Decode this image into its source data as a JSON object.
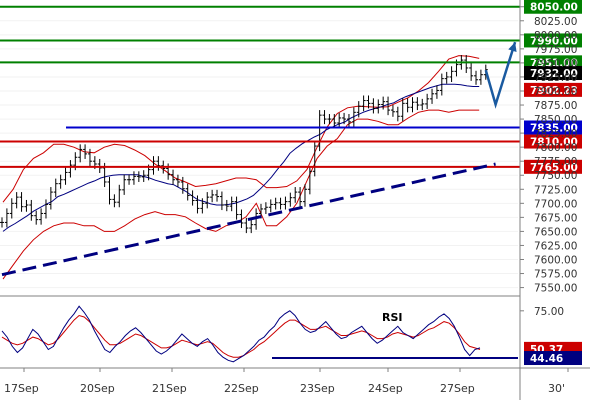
{
  "chart_data": {
    "type": "line",
    "price_panel": {
      "ylim": [
        7535,
        8062
      ],
      "yticks": [
        8050,
        8025,
        8000,
        7975,
        7950,
        7925,
        7900,
        7875,
        7850,
        7825,
        7800,
        7775,
        7750,
        7725,
        7700,
        7675,
        7650,
        7625,
        7600,
        7575,
        7550
      ],
      "ytick_labels": [
        "8050.00",
        "8025.00",
        "8000.00",
        "7975.00",
        "7950.00",
        "7925.00",
        "7900.00",
        "7875.00",
        "7850.00",
        "7825.00",
        "7800.00",
        "7775.00",
        "7750.00",
        "7725.00",
        "7700.00",
        "7675.00",
        "7650.00",
        "7625.00",
        "7600.00",
        "7575.00",
        "7550.00"
      ],
      "levels": [
        {
          "label": "8050.00",
          "value": 8050,
          "kind": "resistance",
          "color": "#008000"
        },
        {
          "label": "7990.00",
          "value": 7990,
          "kind": "resistance",
          "color": "#008000"
        },
        {
          "label": "7951.00",
          "value": 7951,
          "kind": "resistance",
          "color": "#008000"
        },
        {
          "label": "7835.00",
          "value": 7835,
          "kind": "trend",
          "color": "#0000cc"
        },
        {
          "label": "7810.00",
          "value": 7810,
          "kind": "support",
          "color": "#cc0000"
        },
        {
          "label": "7765.00",
          "value": 7765,
          "kind": "support",
          "color": "#cc0000"
        }
      ],
      "price_markers": [
        {
          "label": "7932.00",
          "value": 7932,
          "color": "#000000"
        },
        {
          "label": "7902.23",
          "value": 7902,
          "color": "#cc0000"
        }
      ],
      "trendline": {
        "from": [
          0,
          7573
        ],
        "to": [
          101,
          7770
        ],
        "style": "dashed",
        "color": "#000080"
      },
      "projection_arrow": [
        [
          99,
          7937
        ],
        [
          101,
          7876
        ],
        [
          105,
          7987
        ]
      ],
      "price_series": [
        7666,
        7682,
        7700,
        7711,
        7694,
        7697,
        7678,
        7671,
        7682,
        7698,
        7720,
        7735,
        7742,
        7755,
        7768,
        7782,
        7796,
        7788,
        7775,
        7770,
        7763,
        7738,
        7707,
        7702,
        7724,
        7742,
        7742,
        7748,
        7747,
        7750,
        7760,
        7775,
        7767,
        7762,
        7751,
        7742,
        7738,
        7726,
        7714,
        7705,
        7691,
        7700,
        7711,
        7715,
        7712,
        7697,
        7695,
        7703,
        7680,
        7665,
        7656,
        7662,
        7682,
        7690,
        7693,
        7698,
        7701,
        7698,
        7703,
        7710,
        7720,
        7703,
        7725,
        7757,
        7802,
        7857,
        7850,
        7850,
        7843,
        7852,
        7850,
        7845,
        7862,
        7873,
        7883,
        7878,
        7869,
        7876,
        7881,
        7866,
        7863,
        7855,
        7878,
        7871,
        7880,
        7875,
        7877,
        7886,
        7895,
        7901,
        7922,
        7925,
        7935,
        7947,
        7955,
        7941,
        7927,
        7920,
        7929,
        7938
      ],
      "moving_average": [
        7650,
        7658,
        7664,
        7671,
        7678,
        7686,
        7692,
        7698,
        7703,
        7712,
        7716,
        7721,
        7726,
        7731,
        7736,
        7740,
        7745,
        7748,
        7750,
        7751,
        7751,
        7751,
        7751,
        7748,
        7745,
        7741,
        7738,
        7735,
        7733,
        7727,
        7721,
        7713,
        7706,
        7703,
        7699,
        7697,
        7697,
        7698,
        7700,
        7704,
        7708,
        7714,
        7724,
        7735,
        7747,
        7761,
        7774,
        7789,
        7798,
        7806,
        7812,
        7818,
        7823,
        7831,
        7836,
        7841,
        7845,
        7852,
        7857,
        7862,
        7866,
        7869,
        7872,
        7876,
        7879,
        7885,
        7890,
        7894,
        7898,
        7902,
        7906,
        7909,
        7912,
        7912,
        7912,
        7911,
        7909,
        7908,
        7908
      ],
      "boll_upper": [
        7702,
        7725,
        7760,
        7780,
        7790,
        7805,
        7805,
        7800,
        7792,
        7790,
        7800,
        7805,
        7803,
        7795,
        7785,
        7770,
        7758,
        7745,
        7738,
        7730,
        7732,
        7735,
        7740,
        7745,
        7745,
        7742,
        7728,
        7728,
        7730,
        7740,
        7760,
        7800,
        7836,
        7860,
        7870,
        7873,
        7872,
        7871,
        7872,
        7880,
        7888,
        7900,
        7915,
        7935,
        7957,
        7963,
        7962,
        7958
      ],
      "boll_lower": [
        7565,
        7590,
        7615,
        7635,
        7650,
        7660,
        7665,
        7665,
        7660,
        7660,
        7650,
        7650,
        7660,
        7672,
        7680,
        7685,
        7680,
        7680,
        7676,
        7665,
        7655,
        7650,
        7660,
        7665,
        7676,
        7700,
        7660,
        7660,
        7676,
        7700,
        7740,
        7780,
        7802,
        7815,
        7840,
        7850,
        7850,
        7846,
        7840,
        7840,
        7852,
        7862,
        7866,
        7866,
        7862,
        7866,
        7866,
        7866
      ],
      "x_days": [
        "17Sep",
        "20Sep",
        "21Sep",
        "22Sep",
        "23Sep",
        "24Sep",
        "27Sep",
        "30'"
      ]
    },
    "rsi_panel": {
      "title": "RSI",
      "ylim": [
        38,
        82
      ],
      "yticks": [
        75
      ],
      "ytick_labels": [
        "75.00"
      ],
      "levels": [
        {
          "label": "50.37",
          "value": 50.37,
          "color": "#cc0000"
        },
        {
          "label": "44.46",
          "value": 44.46,
          "color": "#000080"
        }
      ],
      "support_line": {
        "from": [
          45,
          44.46
        ],
        "to": [
          103,
          44.46
        ]
      },
      "rsi_series": [
        62,
        58,
        52,
        48,
        51,
        57,
        63,
        60,
        55,
        50,
        52,
        58,
        64,
        69,
        73,
        78,
        74,
        69,
        62,
        56,
        50,
        48,
        52,
        55,
        59,
        62,
        64,
        61,
        57,
        53,
        49,
        47,
        49,
        52,
        56,
        60,
        57,
        54,
        52,
        55,
        57,
        53,
        48,
        45,
        43,
        42,
        44,
        46,
        49,
        52,
        56,
        58,
        62,
        65,
        70,
        73,
        75,
        72,
        67,
        63,
        61,
        62,
        65,
        68,
        64,
        60,
        57,
        58,
        61,
        63,
        65,
        61,
        57,
        54,
        56,
        59,
        62,
        65,
        61,
        59,
        57,
        60,
        63,
        66,
        68,
        71,
        73,
        70,
        65,
        58,
        50,
        46,
        50,
        51
      ],
      "signal_series": [
        58,
        56,
        54,
        53,
        54,
        56,
        58,
        57,
        55,
        53,
        54,
        57,
        61,
        65,
        69,
        72,
        71,
        68,
        64,
        60,
        56,
        53,
        53,
        54,
        56,
        58,
        60,
        59,
        57,
        55,
        53,
        51,
        51,
        52,
        54,
        56,
        55,
        54,
        53,
        54,
        55,
        54,
        51,
        48,
        46,
        45,
        45,
        46,
        48,
        50,
        53,
        55,
        58,
        61,
        64,
        67,
        69,
        69,
        67,
        65,
        63,
        63,
        64,
        65,
        63,
        61,
        59,
        59,
        60,
        61,
        62,
        61,
        59,
        57,
        57,
        58,
        60,
        61,
        60,
        59,
        58,
        59,
        61,
        63,
        64,
        66,
        68,
        67,
        64,
        60,
        55,
        52,
        51,
        50
      ]
    }
  }
}
